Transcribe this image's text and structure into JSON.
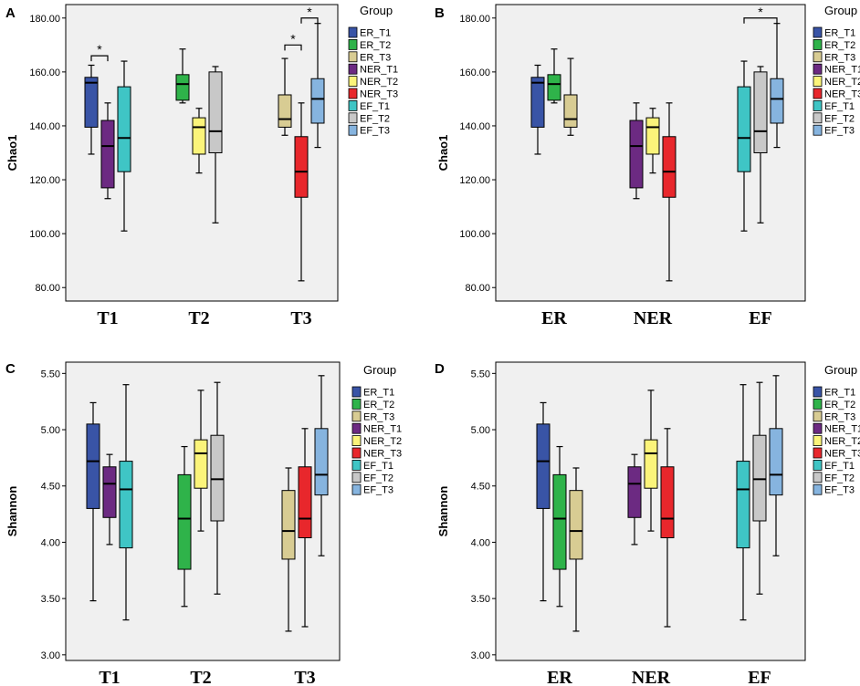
{
  "colors": {
    "ER_T1": "#3954a6",
    "ER_T2": "#2fb34a",
    "ER_T3": "#d8cc93",
    "NER_T1": "#6c2a82",
    "NER_T2": "#fbf47a",
    "NER_T3": "#e8272c",
    "EF_T1": "#3fc5c5",
    "EF_T2": "#c8c8c8",
    "EF_T3": "#86b4df",
    "plot_bg": "#f0f0f0"
  },
  "legend": {
    "title": "Group",
    "items": [
      "ER_T1",
      "ER_T2",
      "ER_T3",
      "NER_T1",
      "NER_T2",
      "NER_T3",
      "EF_T1",
      "EF_T2",
      "EF_T3"
    ]
  },
  "chart_data": [
    {
      "panel": "A",
      "type": "boxplot",
      "ylabel": "Chao1",
      "ylim": [
        75,
        185
      ],
      "yticks": [
        80,
        100,
        120,
        140,
        160,
        180
      ],
      "ytick_labels": [
        "80.00",
        "100.00",
        "120.00",
        "140.00",
        "160.00",
        "180.00"
      ],
      "categories": [
        "T1",
        "T2",
        "T3"
      ],
      "series": [
        {
          "cat": "T1",
          "group": "ER_T1",
          "min": 129.5,
          "q1": 139.5,
          "median": 156,
          "q3": 158,
          "max": 162.5
        },
        {
          "cat": "T1",
          "group": "NER_T1",
          "min": 113,
          "q1": 117,
          "median": 132.5,
          "q3": 142,
          "max": 148.5
        },
        {
          "cat": "T1",
          "group": "EF_T1",
          "min": 101,
          "q1": 123,
          "median": 135.5,
          "q3": 154.5,
          "max": 164
        },
        {
          "cat": "T2",
          "group": "ER_T2",
          "min": 148.5,
          "q1": 149.5,
          "median": 155.5,
          "q3": 159,
          "max": 168.5
        },
        {
          "cat": "T2",
          "group": "NER_T2",
          "min": 122.5,
          "q1": 129.5,
          "median": 139.5,
          "q3": 143,
          "max": 146.5
        },
        {
          "cat": "T2",
          "group": "EF_T2",
          "min": 104,
          "q1": 130,
          "median": 138,
          "q3": 160,
          "max": 162
        },
        {
          "cat": "T3",
          "group": "ER_T3",
          "min": 136.5,
          "q1": 139.5,
          "median": 142.5,
          "q3": 151.5,
          "max": 165
        },
        {
          "cat": "T3",
          "group": "NER_T3",
          "min": 82.5,
          "q1": 113.5,
          "median": 123,
          "q3": 136,
          "max": 148.5
        },
        {
          "cat": "T3",
          "group": "EF_T3",
          "min": 132,
          "q1": 141,
          "median": 150,
          "q3": 157.5,
          "max": 178
        }
      ],
      "significance": [
        {
          "from": 0,
          "to": 1,
          "y": 166,
          "label": "*"
        },
        {
          "from": 6,
          "to": 7,
          "y": 170,
          "label": "*"
        },
        {
          "from": 7,
          "to": 8,
          "y": 180,
          "label": "*"
        }
      ]
    },
    {
      "panel": "B",
      "type": "boxplot",
      "ylabel": "Chao1",
      "ylim": [
        75,
        185
      ],
      "yticks": [
        80,
        100,
        120,
        140,
        160,
        180
      ],
      "ytick_labels": [
        "80.00",
        "100.00",
        "120.00",
        "140.00",
        "160.00",
        "180.00"
      ],
      "categories": [
        "ER",
        "NER",
        "EF"
      ],
      "series": [
        {
          "cat": "ER",
          "group": "ER_T1",
          "min": 129.5,
          "q1": 139.5,
          "median": 156,
          "q3": 158,
          "max": 162.5
        },
        {
          "cat": "ER",
          "group": "ER_T2",
          "min": 148.5,
          "q1": 149.5,
          "median": 155.5,
          "q3": 159,
          "max": 168.5
        },
        {
          "cat": "ER",
          "group": "ER_T3",
          "min": 136.5,
          "q1": 139.5,
          "median": 142.5,
          "q3": 151.5,
          "max": 165
        },
        {
          "cat": "NER",
          "group": "NER_T1",
          "min": 113,
          "q1": 117,
          "median": 132.5,
          "q3": 142,
          "max": 148.5
        },
        {
          "cat": "NER",
          "group": "NER_T2",
          "min": 122.5,
          "q1": 129.5,
          "median": 139.5,
          "q3": 143,
          "max": 146.5
        },
        {
          "cat": "NER",
          "group": "NER_T3",
          "min": 82.5,
          "q1": 113.5,
          "median": 123,
          "q3": 136,
          "max": 148.5
        },
        {
          "cat": "EF",
          "group": "EF_T1",
          "min": 101,
          "q1": 123,
          "median": 135.5,
          "q3": 154.5,
          "max": 164
        },
        {
          "cat": "EF",
          "group": "EF_T2",
          "min": 104,
          "q1": 130,
          "median": 138,
          "q3": 160,
          "max": 162
        },
        {
          "cat": "EF",
          "group": "EF_T3",
          "min": 132,
          "q1": 141,
          "median": 150,
          "q3": 157.5,
          "max": 178
        }
      ],
      "significance": [
        {
          "from": 6,
          "to": 8,
          "y": 180,
          "label": "*"
        }
      ]
    },
    {
      "panel": "C",
      "type": "boxplot",
      "ylabel": "Shannon",
      "ylim": [
        2.95,
        5.6
      ],
      "yticks": [
        3.0,
        3.5,
        4.0,
        4.5,
        5.0,
        5.5
      ],
      "ytick_labels": [
        "3.00",
        "3.50",
        "4.00",
        "4.50",
        "5.00",
        "5.50"
      ],
      "categories": [
        "T1",
        "T2",
        "T3"
      ],
      "series": [
        {
          "cat": "T1",
          "group": "ER_T1",
          "min": 3.48,
          "q1": 4.3,
          "median": 4.72,
          "q3": 5.05,
          "max": 5.24
        },
        {
          "cat": "T1",
          "group": "NER_T1",
          "min": 3.98,
          "q1": 4.22,
          "median": 4.52,
          "q3": 4.67,
          "max": 4.78
        },
        {
          "cat": "T1",
          "group": "EF_T1",
          "min": 3.31,
          "q1": 3.95,
          "median": 4.47,
          "q3": 4.72,
          "max": 5.4
        },
        {
          "cat": "T2",
          "group": "ER_T2",
          "min": 3.43,
          "q1": 3.76,
          "median": 4.21,
          "q3": 4.6,
          "max": 4.85
        },
        {
          "cat": "T2",
          "group": "NER_T2",
          "min": 4.1,
          "q1": 4.48,
          "median": 4.79,
          "q3": 4.91,
          "max": 5.35
        },
        {
          "cat": "T2",
          "group": "EF_T2",
          "min": 3.54,
          "q1": 4.19,
          "median": 4.56,
          "q3": 4.95,
          "max": 5.42
        },
        {
          "cat": "T3",
          "group": "ER_T3",
          "min": 3.21,
          "q1": 3.85,
          "median": 4.1,
          "q3": 4.46,
          "max": 4.66
        },
        {
          "cat": "T3",
          "group": "NER_T3",
          "min": 3.25,
          "q1": 4.04,
          "median": 4.21,
          "q3": 4.67,
          "max": 5.01
        },
        {
          "cat": "T3",
          "group": "EF_T3",
          "min": 3.88,
          "q1": 4.42,
          "median": 4.6,
          "q3": 5.01,
          "max": 5.48
        }
      ],
      "significance": []
    },
    {
      "panel": "D",
      "type": "boxplot",
      "ylabel": "Shannon",
      "ylim": [
        2.95,
        5.6
      ],
      "yticks": [
        3.0,
        3.5,
        4.0,
        4.5,
        5.0,
        5.5
      ],
      "ytick_labels": [
        "3.00",
        "3.50",
        "4.00",
        "4.50",
        "5.00",
        "5.50"
      ],
      "categories": [
        "ER",
        "NER",
        "EF"
      ],
      "series": [
        {
          "cat": "ER",
          "group": "ER_T1",
          "min": 3.48,
          "q1": 4.3,
          "median": 4.72,
          "q3": 5.05,
          "max": 5.24
        },
        {
          "cat": "ER",
          "group": "ER_T2",
          "min": 3.43,
          "q1": 3.76,
          "median": 4.21,
          "q3": 4.6,
          "max": 4.85
        },
        {
          "cat": "ER",
          "group": "ER_T3",
          "min": 3.21,
          "q1": 3.85,
          "median": 4.1,
          "q3": 4.46,
          "max": 4.66
        },
        {
          "cat": "NER",
          "group": "NER_T1",
          "min": 3.98,
          "q1": 4.22,
          "median": 4.52,
          "q3": 4.67,
          "max": 4.78
        },
        {
          "cat": "NER",
          "group": "NER_T2",
          "min": 4.1,
          "q1": 4.48,
          "median": 4.79,
          "q3": 4.91,
          "max": 5.35
        },
        {
          "cat": "NER",
          "group": "NER_T3",
          "min": 3.25,
          "q1": 4.04,
          "median": 4.21,
          "q3": 4.67,
          "max": 5.01
        },
        {
          "cat": "EF",
          "group": "EF_T1",
          "min": 3.31,
          "q1": 3.95,
          "median": 4.47,
          "q3": 4.72,
          "max": 5.4
        },
        {
          "cat": "EF",
          "group": "EF_T2",
          "min": 3.54,
          "q1": 4.19,
          "median": 4.56,
          "q3": 4.95,
          "max": 5.42
        },
        {
          "cat": "EF",
          "group": "EF_T3",
          "min": 3.88,
          "q1": 4.42,
          "median": 4.6,
          "q3": 5.01,
          "max": 5.48
        }
      ],
      "significance": []
    }
  ]
}
